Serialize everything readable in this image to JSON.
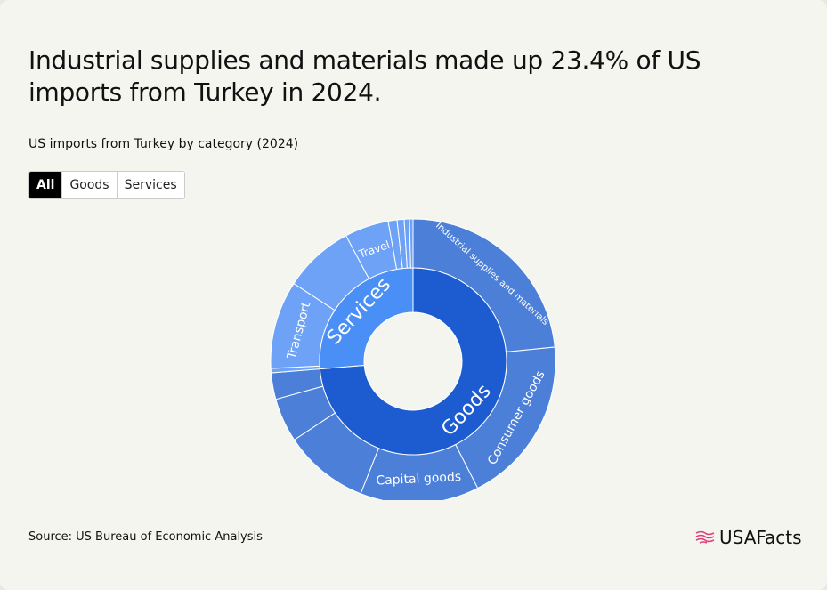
{
  "chart_data": {
    "type": "sunburst",
    "title": "Industrial supplies and materials made up 23.4% of US imports from Turkey in 2024.",
    "subtitle": "US imports from Turkey by category (2024)",
    "series": [
      {
        "name": "Goods",
        "color": "#1d5bd0",
        "child_color": "#4b7fd8",
        "children": [
          {
            "name": "Industrial supplies and materials",
            "value": 23.4
          },
          {
            "name": "Consumer goods",
            "value": 19.1
          },
          {
            "name": "Capital goods",
            "value": 13.5
          },
          {
            "name": null,
            "value": 9.7
          },
          {
            "name": null,
            "value": 5
          },
          {
            "name": null,
            "value": 3
          }
        ]
      },
      {
        "name": "Services",
        "color": "#4a8ff6",
        "child_color": "#6ea2f6",
        "children": [
          {
            "name": null,
            "value": 0.5
          },
          {
            "name": "Transport",
            "value": 10
          },
          {
            "name": null,
            "value": 8
          },
          {
            "name": "Travel",
            "value": 5
          },
          {
            "name": null,
            "value": 1
          },
          {
            "name": null,
            "value": 0.8
          },
          {
            "name": null,
            "value": 0.6
          },
          {
            "name": null,
            "value": 0.4
          }
        ]
      }
    ]
  },
  "tabs": [
    "All",
    "Goods",
    "Services"
  ],
  "source": "Source: US Bureau of Economic Analysis",
  "brand": "USAFacts"
}
